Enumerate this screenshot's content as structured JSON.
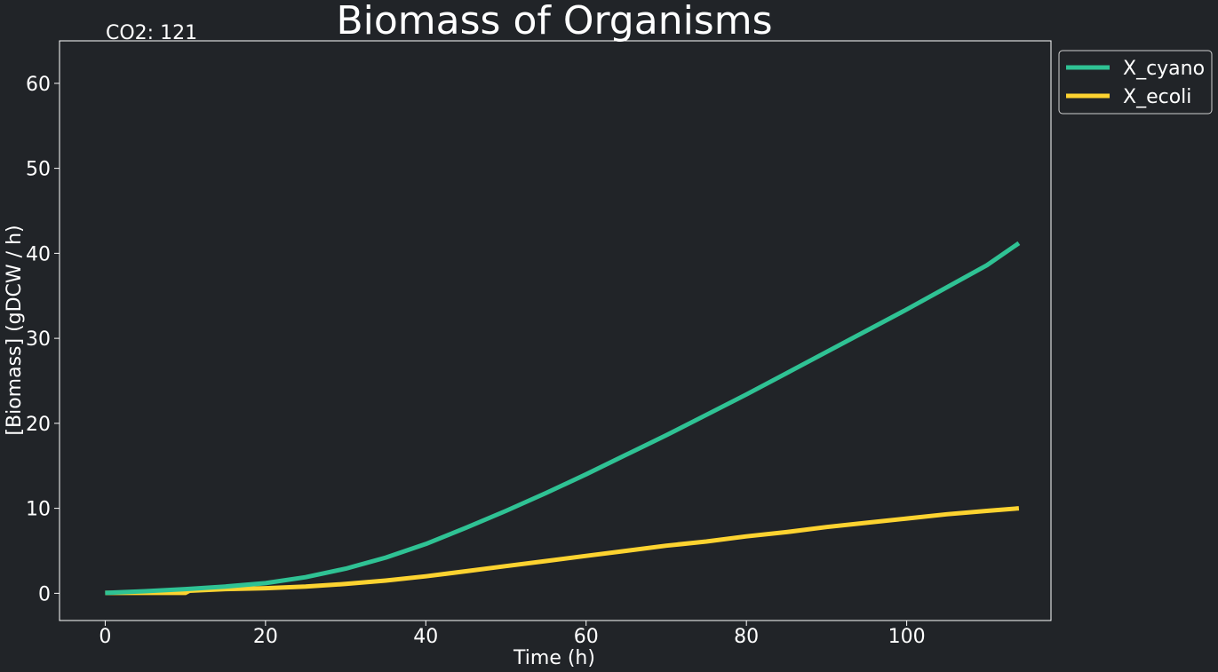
{
  "colors": {
    "background": "#212428",
    "text": "#ffffff",
    "frame": "#ffffff",
    "legend_border": "#d0d0d0"
  },
  "annotation": "CO2: 121",
  "chart_data": {
    "type": "line",
    "title": "Biomass of Organisms",
    "xlabel": "Time (h)",
    "ylabel": "[Biomass] (gDCW / h)",
    "xlim": [
      -5.7,
      118
    ],
    "ylim": [
      -3.2,
      65
    ],
    "xticks": [
      0,
      20,
      40,
      60,
      80,
      100
    ],
    "yticks": [
      0,
      10,
      20,
      30,
      40,
      50,
      60
    ],
    "grid": false,
    "legend_position": "outside-top-right",
    "series": [
      {
        "name": "X_cyano",
        "color": "#2fc294",
        "x": [
          0,
          5,
          10,
          15,
          20,
          25,
          30,
          35,
          40,
          45,
          50,
          55,
          60,
          65,
          70,
          75,
          80,
          85,
          90,
          95,
          100,
          105,
          110,
          114
        ],
        "y": [
          0.05,
          0.25,
          0.5,
          0.8,
          1.2,
          1.9,
          2.9,
          4.2,
          5.8,
          7.7,
          9.7,
          11.8,
          14.0,
          16.3,
          18.6,
          21.0,
          23.4,
          25.9,
          28.4,
          30.9,
          33.4,
          36.0,
          38.6,
          41.2
        ]
      },
      {
        "name": "X_ecoli",
        "color": "#fdd330",
        "x": [
          0,
          5,
          10,
          10.5,
          15,
          20,
          25,
          30,
          35,
          40,
          45,
          50,
          55,
          60,
          65,
          70,
          75,
          80,
          85,
          90,
          95,
          100,
          105,
          110,
          114
        ],
        "y": [
          0.05,
          0.05,
          0.05,
          0.3,
          0.5,
          0.6,
          0.8,
          1.1,
          1.5,
          2.0,
          2.6,
          3.2,
          3.8,
          4.4,
          5.0,
          5.6,
          6.1,
          6.7,
          7.2,
          7.8,
          8.3,
          8.8,
          9.3,
          9.7,
          10.0
        ]
      }
    ]
  }
}
